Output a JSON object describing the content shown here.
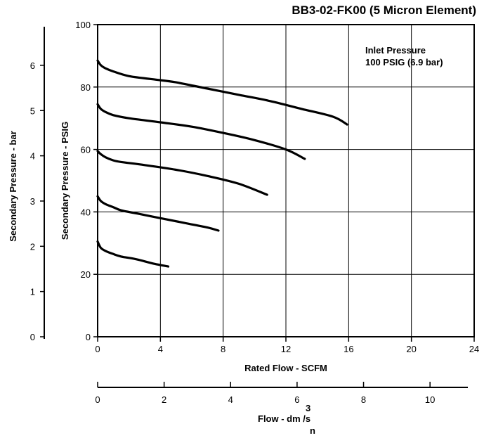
{
  "chart_data": {
    "type": "line",
    "title": "BB3-02-FK00 (5 Micron Element)",
    "annotation": [
      "Inlet Pressure",
      "100 PSIG (6.9 bar)"
    ],
    "xlabel": "Rated Flow - SCFM",
    "ylabel": "Secondary Pressure - PSIG",
    "y2label": "Secondary Pressure - bar",
    "x2label": {
      "main": "Flow - dm /s",
      "sup": "3",
      "sub": "n"
    },
    "xlim": [
      0,
      24
    ],
    "ylim": [
      0,
      100
    ],
    "xticks": [
      "0",
      "4",
      "8",
      "12",
      "16",
      "20",
      "24"
    ],
    "yticks": [
      "0",
      "20",
      "40",
      "60",
      "80",
      "100"
    ],
    "y2ticks": [
      "0",
      "1",
      "2",
      "3",
      "4",
      "5",
      "6"
    ],
    "x2ticks": [
      "0",
      "2",
      "4",
      "6",
      "8",
      "10"
    ],
    "grid": true,
    "series": [
      {
        "x": [
          0,
          0.2,
          0.5,
          1,
          1.5,
          2.5,
          3.5,
          4.5
        ],
        "y": [
          30.5,
          28.5,
          27.5,
          26.5,
          25.7,
          24.8,
          23.5,
          22.5
        ]
      },
      {
        "x": [
          0,
          0.2,
          0.5,
          1,
          1.5,
          2.5,
          4,
          5.5,
          7,
          7.7
        ],
        "y": [
          45,
          43.5,
          42.5,
          41.5,
          40.5,
          39.5,
          38,
          36.5,
          35,
          34
        ]
      },
      {
        "x": [
          0,
          0.2,
          0.5,
          1,
          1.5,
          3,
          5,
          7,
          9,
          10.8
        ],
        "y": [
          59.5,
          58.5,
          57.5,
          56.5,
          56,
          55,
          53.5,
          51.5,
          49,
          45.5
        ]
      },
      {
        "x": [
          0,
          0.2,
          0.5,
          1,
          2,
          4,
          6,
          8,
          10,
          12,
          13.2
        ],
        "y": [
          74.5,
          73,
          72,
          71,
          70,
          68.7,
          67.3,
          65.3,
          63,
          60,
          57
        ]
      },
      {
        "x": [
          0,
          0.2,
          0.5,
          1,
          2,
          3.5,
          5,
          7,
          9,
          11,
          13,
          15,
          15.9
        ],
        "y": [
          88.5,
          87,
          86,
          85,
          83.5,
          82.5,
          81.5,
          79.5,
          77.5,
          75.5,
          73,
          70.5,
          68
        ]
      }
    ]
  }
}
